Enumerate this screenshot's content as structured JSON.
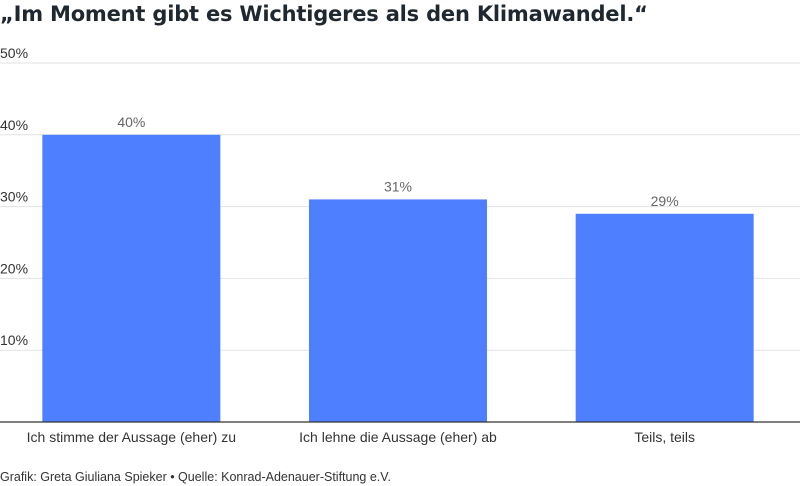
{
  "chart_data": {
    "type": "bar",
    "title": "„Im Moment gibt es Wichtigeres als den Klimawandel.“",
    "categories": [
      "Ich stimme der Aussage (eher) zu",
      "Ich lehne die Aussage (eher) ab",
      "Teils, teils"
    ],
    "values": [
      40,
      31,
      29
    ],
    "value_labels": [
      "40%",
      "31%",
      "29%"
    ],
    "ylim": [
      0,
      50
    ],
    "yticks": [
      10,
      20,
      30,
      40,
      50
    ],
    "ytick_labels": [
      "10%",
      "20%",
      "30%",
      "40%",
      "50%"
    ],
    "grid": true,
    "bar_color": "#4d7fff"
  },
  "footer": {
    "credit": "Grafik: Greta Giuliana Spieker • Quelle: Konrad-Adenauer-Stiftung e.V."
  }
}
